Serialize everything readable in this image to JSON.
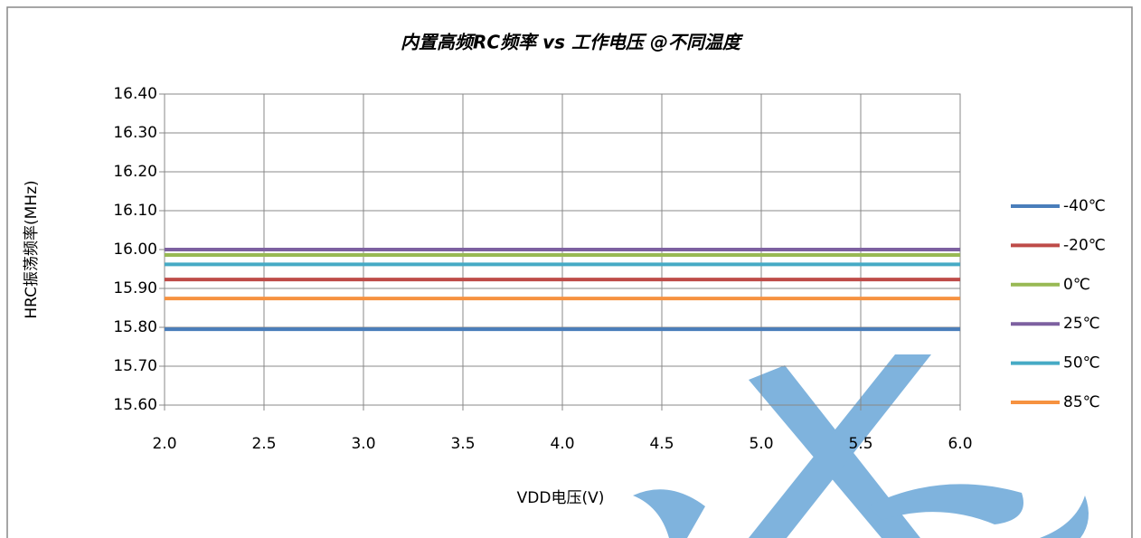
{
  "chart_data": {
    "type": "line",
    "title": "内置高频RC频率 vs 工作电压 @不同温度",
    "x_label": "VDD电压(V)",
    "y_label": "HRC振荡频率(MHz)",
    "x": [
      2.0,
      6.0
    ],
    "series": [
      {
        "name": "-40℃",
        "color": "#4a7ebb",
        "values": [
          15.795,
          15.795
        ]
      },
      {
        "name": "-20℃",
        "color": "#be4b48",
        "values": [
          15.923,
          15.923
        ]
      },
      {
        "name": "0℃",
        "color": "#98b954",
        "values": [
          15.986,
          15.986
        ]
      },
      {
        "name": "25℃",
        "color": "#7d60a0",
        "values": [
          16.0,
          16.0
        ]
      },
      {
        "name": "50℃",
        "color": "#46aac5",
        "values": [
          15.962,
          15.962
        ]
      },
      {
        "name": "85℃",
        "color": "#f69240",
        "values": [
          15.874,
          15.874
        ]
      }
    ],
    "xlim": [
      2.0,
      6.0
    ],
    "xticks": [
      {
        "value": 2,
        "label": "2.0"
      },
      2.5,
      {
        "value": 3,
        "label": "3.0"
      },
      3.5,
      {
        "value": 4,
        "label": "4.0"
      },
      4.5,
      {
        "value": 5,
        "label": "5.0"
      },
      5.5,
      {
        "value": 6,
        "label": "6.0"
      }
    ],
    "ylim": [
      15.6,
      16.4
    ],
    "yticks": [
      {
        "value": 15.6,
        "label": "15.60"
      },
      {
        "value": 15.7,
        "label": "15.70"
      },
      {
        "value": 15.8,
        "label": "15.80"
      },
      {
        "value": 15.9,
        "label": "15.90"
      },
      {
        "value": 16.0,
        "label": "16.00"
      },
      {
        "value": 16.1,
        "label": "16.10"
      },
      {
        "value": 16.2,
        "label": "16.20"
      },
      {
        "value": 16.3,
        "label": "16.30"
      },
      {
        "value": 16.4,
        "label": "16.40"
      }
    ],
    "grid": true,
    "legend": "right"
  }
}
